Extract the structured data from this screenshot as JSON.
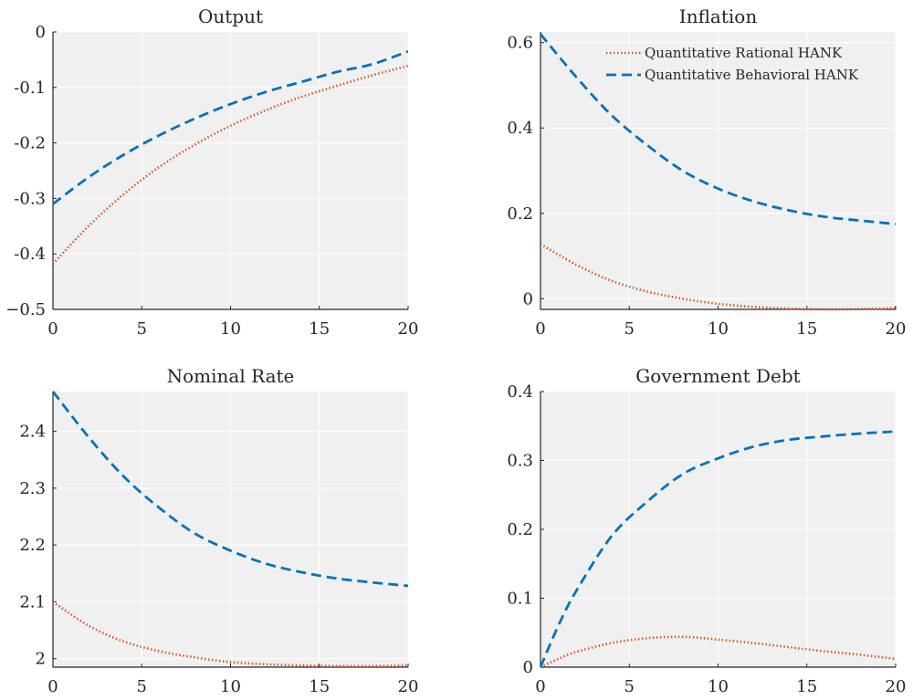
{
  "chart_data": [
    {
      "type": "line",
      "title": "Output",
      "xlabel": "",
      "ylabel": "",
      "xlim": [
        0,
        20
      ],
      "ylim": [
        -0.5,
        0
      ],
      "xticks": [
        0,
        5,
        10,
        15,
        20
      ],
      "xtick_labels": [
        "0",
        "5",
        "10",
        "15",
        "20"
      ],
      "yticks": [
        -0.5,
        -0.4,
        -0.3,
        -0.2,
        -0.1,
        0
      ],
      "ytick_labels": [
        "−0.5",
        "-0.4",
        "-0.3",
        "-0.2",
        "-0.1",
        "0"
      ],
      "grid": true,
      "x": [
        0,
        2,
        4,
        6,
        8,
        10,
        12,
        14,
        16,
        18,
        20
      ],
      "series": [
        {
          "name": "Quantitative Rational HANK",
          "style": "dotted",
          "color": "#D95319",
          "values": [
            -0.418,
            -0.35,
            -0.292,
            -0.243,
            -0.203,
            -0.169,
            -0.141,
            -0.117,
            -0.097,
            -0.078,
            -0.061
          ]
        },
        {
          "name": "Quantitative Behavioral HANK",
          "style": "dashed",
          "color": "#0072BD",
          "values": [
            -0.31,
            -0.262,
            -0.221,
            -0.186,
            -0.156,
            -0.13,
            -0.108,
            -0.09,
            -0.072,
            -0.058,
            -0.035
          ]
        }
      ]
    },
    {
      "type": "line",
      "title": "Inflation",
      "xlabel": "",
      "ylabel": "",
      "xlim": [
        0,
        20
      ],
      "ylim": [
        -0.025,
        0.625
      ],
      "xticks": [
        0,
        5,
        10,
        15,
        20
      ],
      "xtick_labels": [
        "0",
        "5",
        "10",
        "15",
        "20"
      ],
      "yticks": [
        0,
        0.2,
        0.4,
        0.6
      ],
      "ytick_labels": [
        "0",
        "0.2",
        "0.4",
        "0.6"
      ],
      "grid": true,
      "legend_position": "top-right",
      "x": [
        0,
        2,
        4,
        6,
        8,
        10,
        12,
        14,
        16,
        18,
        20
      ],
      "series": [
        {
          "name": "Quantitative Rational HANK",
          "style": "dotted",
          "color": "#D95319",
          "values": [
            0.128,
            0.08,
            0.042,
            0.017,
            0.0,
            -0.012,
            -0.019,
            -0.023,
            -0.025,
            -0.024,
            -0.022
          ]
        },
        {
          "name": "Quantitative Behavioral HANK",
          "style": "dashed",
          "color": "#0072BD",
          "values": [
            0.62,
            0.52,
            0.43,
            0.36,
            0.3,
            0.258,
            0.228,
            0.207,
            0.192,
            0.183,
            0.175
          ]
        }
      ]
    },
    {
      "type": "line",
      "title": "Nominal Rate",
      "xlabel": "",
      "ylabel": "",
      "xlim": [
        0,
        20
      ],
      "ylim": [
        1.985,
        2.47
      ],
      "xticks": [
        0,
        5,
        10,
        15,
        20
      ],
      "xtick_labels": [
        "0",
        "5",
        "10",
        "15",
        "20"
      ],
      "yticks": [
        2.0,
        2.1,
        2.2,
        2.3,
        2.4
      ],
      "ytick_labels": [
        "2",
        "2.1",
        "2.2",
        "2.3",
        "2.4"
      ],
      "grid": true,
      "x": [
        0,
        2,
        4,
        6,
        8,
        10,
        12,
        14,
        16,
        18,
        20
      ],
      "series": [
        {
          "name": "Quantitative Rational HANK",
          "style": "dotted",
          "color": "#D95319",
          "values": [
            2.1,
            2.058,
            2.03,
            2.013,
            2.002,
            1.994,
            1.99,
            1.988,
            1.987,
            1.987,
            1.988
          ]
        },
        {
          "name": "Quantitative Behavioral HANK",
          "style": "dashed",
          "color": "#0072BD",
          "values": [
            2.47,
            2.39,
            2.32,
            2.265,
            2.22,
            2.19,
            2.167,
            2.152,
            2.141,
            2.134,
            2.128
          ]
        }
      ]
    },
    {
      "type": "line",
      "title": "Government Debt",
      "xlabel": "",
      "ylabel": "",
      "xlim": [
        0,
        20
      ],
      "ylim": [
        0,
        0.4
      ],
      "xticks": [
        0,
        5,
        10,
        15,
        20
      ],
      "xtick_labels": [
        "0",
        "5",
        "10",
        "15",
        "20"
      ],
      "yticks": [
        0,
        0.1,
        0.2,
        0.3,
        0.4
      ],
      "ytick_labels": [
        "0",
        "0.1",
        "0.2",
        "0.3",
        "0.4"
      ],
      "grid": true,
      "x": [
        0,
        1,
        2,
        4,
        6,
        8,
        10,
        12,
        14,
        16,
        18,
        20
      ],
      "series": [
        {
          "name": "Quantitative Rational HANK",
          "style": "dotted",
          "color": "#D95319",
          "values": [
            0.0,
            0.012,
            0.022,
            0.035,
            0.042,
            0.044,
            0.04,
            0.035,
            0.029,
            0.023,
            0.018,
            0.012
          ]
        },
        {
          "name": "Quantitative Behavioral HANK",
          "style": "dashed",
          "color": "#0072BD",
          "values": [
            0.0,
            0.06,
            0.11,
            0.19,
            0.24,
            0.28,
            0.303,
            0.32,
            0.33,
            0.335,
            0.339,
            0.342
          ]
        }
      ]
    }
  ]
}
